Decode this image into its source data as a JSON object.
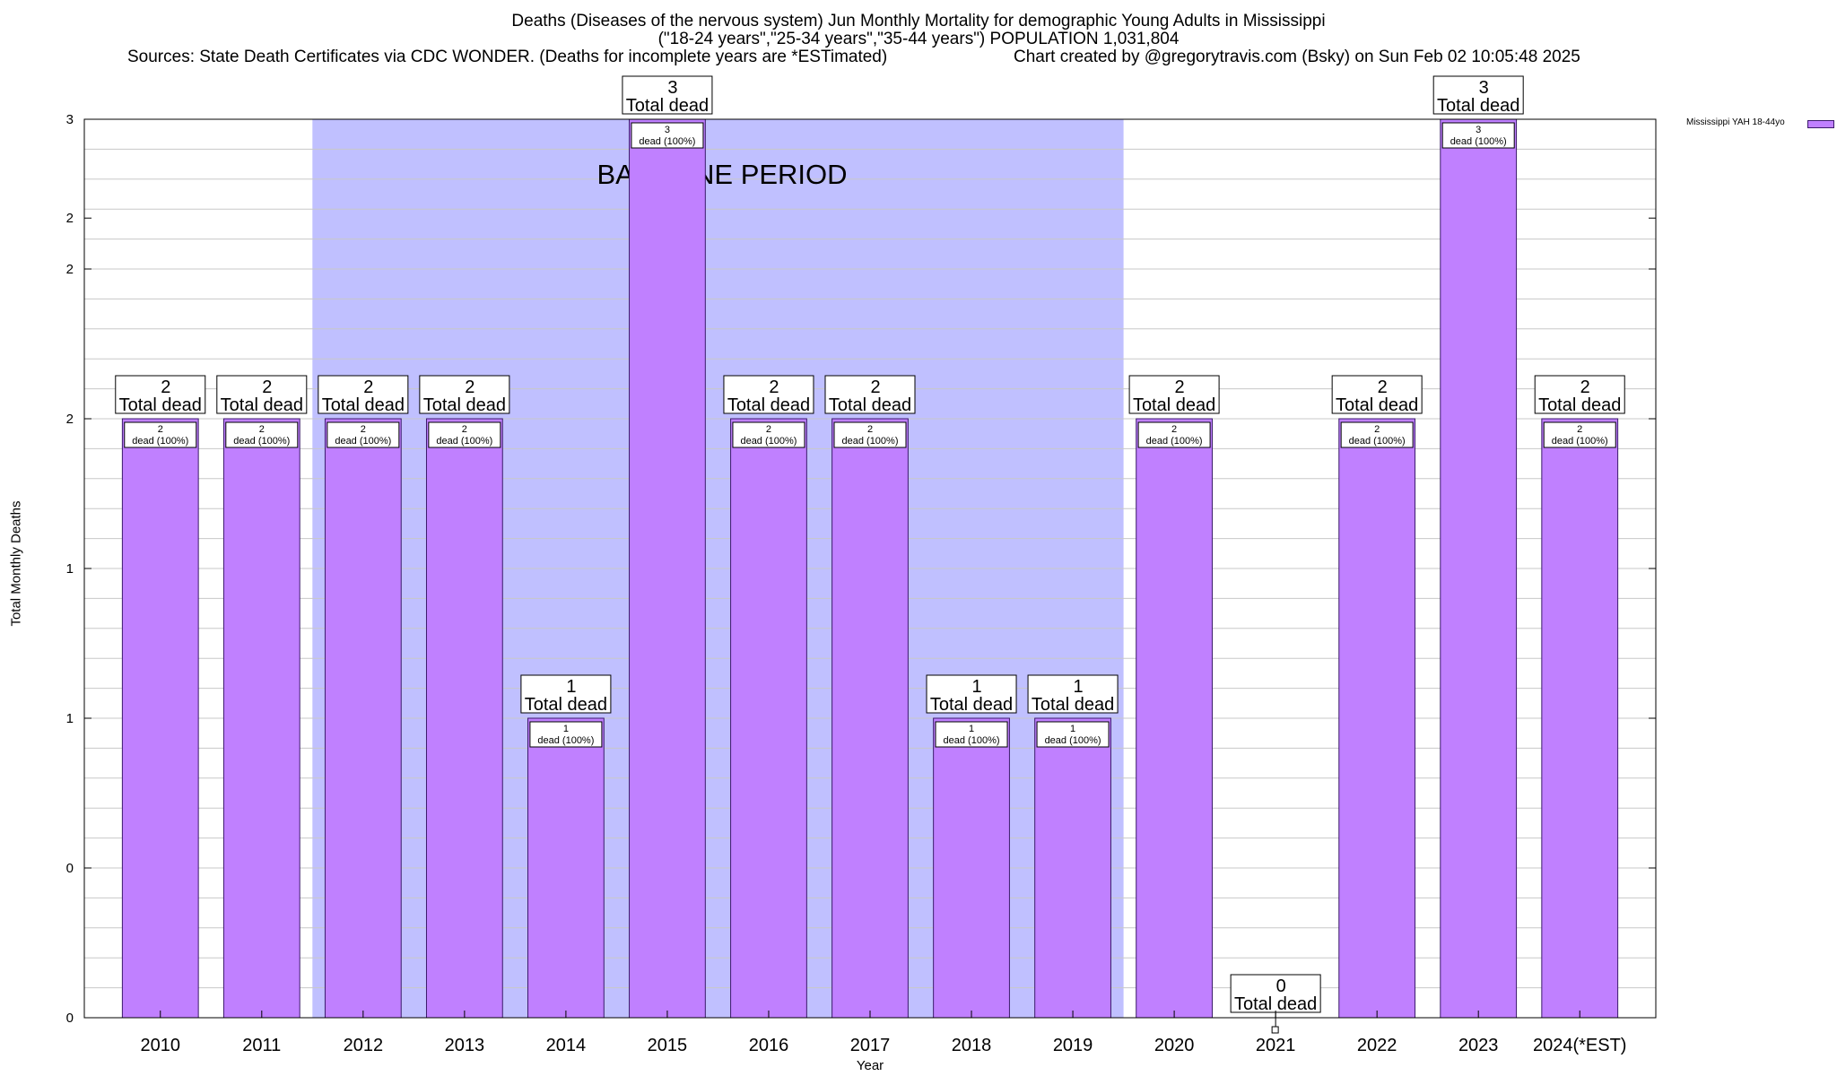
{
  "title": {
    "line1": "Deaths (Diseases of the nervous system) Jun Monthly Mortality for demographic Young Adults in Mississippi",
    "line2": "(\"18-24 years\",\"25-34 years\",\"35-44 years\") POPULATION 1,031,804",
    "source": "Sources: State Death Certificates via CDC WONDER. (Deaths for incomplete years are *ESTimated)",
    "credit": "Chart created by @gregorytravis.com (Bsky) on Sun Feb 02 10:05:48 2025"
  },
  "colors": {
    "bar": "#c080ff",
    "bar_border": "#3b1a6b",
    "baseline_band": "#c0c0ff",
    "grid": "#c8c8c8"
  },
  "chart_data": {
    "type": "bar",
    "categories": [
      "2010",
      "2011",
      "2012",
      "2013",
      "2014",
      "2015",
      "2016",
      "2017",
      "2018",
      "2019",
      "2020",
      "2021",
      "2022",
      "2023",
      "2024(*EST)"
    ],
    "series": [
      {
        "name": "Mississippi YAH 18-44yo",
        "values": [
          2,
          2,
          2,
          2,
          1,
          3,
          2,
          2,
          1,
          1,
          2,
          0,
          2,
          3,
          2
        ]
      }
    ],
    "ylim": [
      0,
      3
    ],
    "ytick_labels": [
      "0",
      "0",
      "1",
      "1",
      "2",
      "2",
      "2",
      "3"
    ],
    "ytick_values": [
      0,
      0.5,
      1,
      1.5,
      2,
      2.5,
      2.67,
      3
    ],
    "xlabel": "Year",
    "ylabel": "Total Monthly Deaths",
    "grid": true,
    "legend_position": "top-right",
    "total_label_suffix": "Total dead",
    "inner_label_suffix": "dead (100%)",
    "annotation": {
      "text": "BASELINE PERIOD",
      "x_start": "2012",
      "x_end": "2019"
    }
  }
}
